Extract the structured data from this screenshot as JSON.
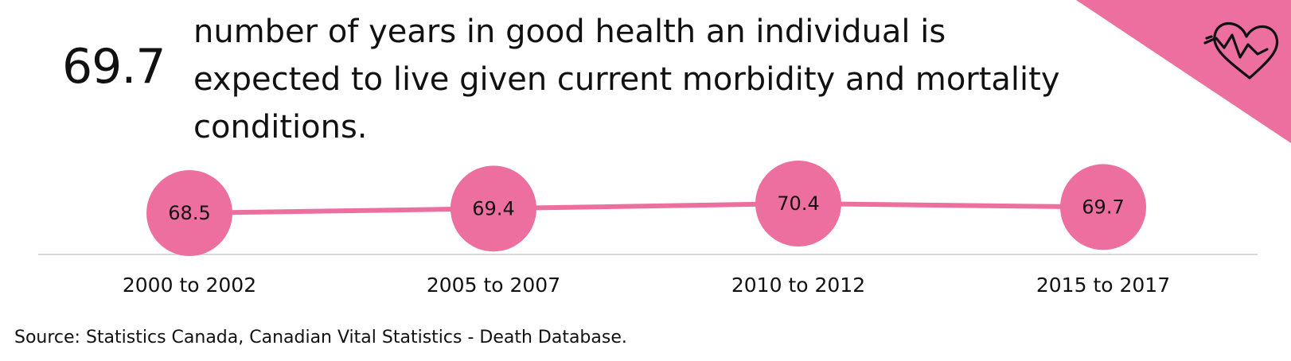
{
  "headline": {
    "value": "69.7",
    "description": "number of years in good health an individual is expected to live given current morbidity and mortality conditions."
  },
  "chart_data": {
    "type": "line",
    "categories": [
      "2000 to 2002",
      "2005 to 2007",
      "2010 to 2012",
      "2015 to 2017"
    ],
    "values": [
      68.5,
      69.4,
      70.4,
      69.7
    ],
    "data_labels": [
      "68.5",
      "69.4",
      "70.4",
      "69.7"
    ],
    "title": "",
    "xlabel": "",
    "ylabel": "",
    "grid": false,
    "legend": "none",
    "marker": "large-circle-with-value"
  },
  "colors": {
    "accent": "#ec6fa0",
    "axis": "#d9d9d9",
    "text": "#111111"
  },
  "icon": "heart-with-pulse-icon",
  "source": "Source: Statistics Canada, Canadian Vital Statistics - Death Database."
}
